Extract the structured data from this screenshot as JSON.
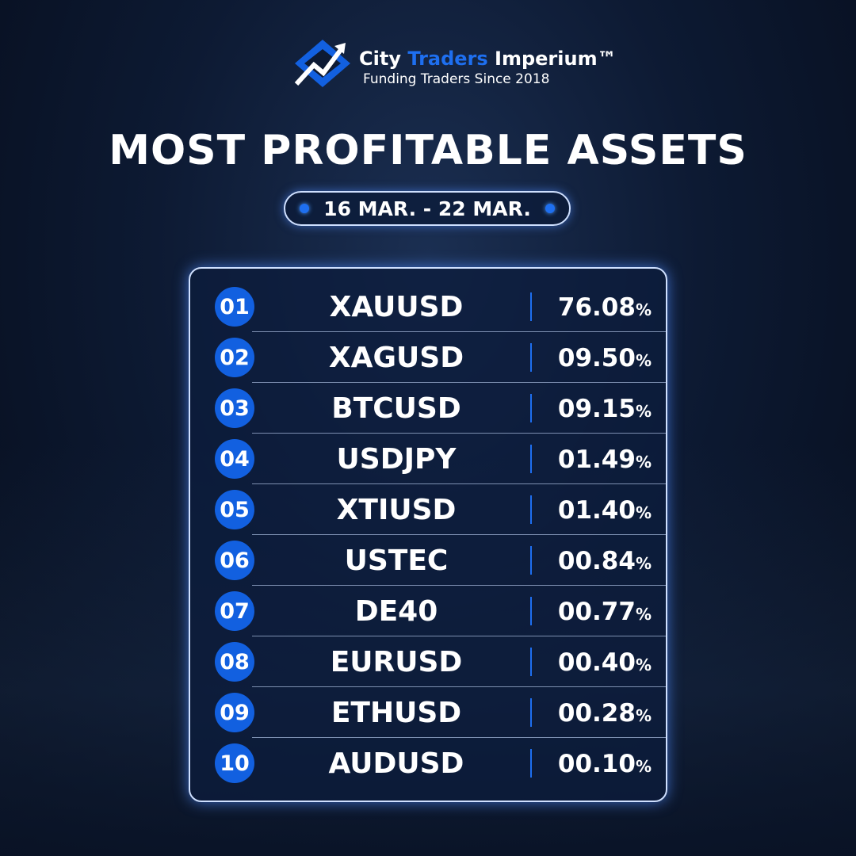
{
  "header": {
    "brand_prefix": "City",
    "brand_highlight": "Traders",
    "brand_suffix": "Imperium™",
    "tagline": "Funding Traders Since 2018"
  },
  "title": "MOST PROFITABLE ASSETS",
  "date_range": "16 MAR. - 22 MAR.",
  "table": {
    "rows": [
      {
        "rank": "01",
        "asset": "XAUUSD",
        "value": "76.08",
        "unit": "%"
      },
      {
        "rank": "02",
        "asset": "XAGUSD",
        "value": "09.50",
        "unit": "%"
      },
      {
        "rank": "03",
        "asset": "BTCUSD",
        "value": "09.15",
        "unit": "%"
      },
      {
        "rank": "04",
        "asset": "USDJPY",
        "value": "01.49",
        "unit": "%"
      },
      {
        "rank": "05",
        "asset": "XTIUSD",
        "value": "01.40",
        "unit": "%"
      },
      {
        "rank": "06",
        "asset": "USTEC",
        "value": "00.84",
        "unit": "%"
      },
      {
        "rank": "07",
        "asset": "DE40",
        "value": "00.77",
        "unit": "%"
      },
      {
        "rank": "08",
        "asset": "EURUSD",
        "value": "00.40",
        "unit": "%"
      },
      {
        "rank": "09",
        "asset": "ETHUSD",
        "value": "00.28",
        "unit": "%"
      },
      {
        "rank": "10",
        "asset": "AUDUSD",
        "value": "00.10",
        "unit": "%"
      }
    ]
  }
}
